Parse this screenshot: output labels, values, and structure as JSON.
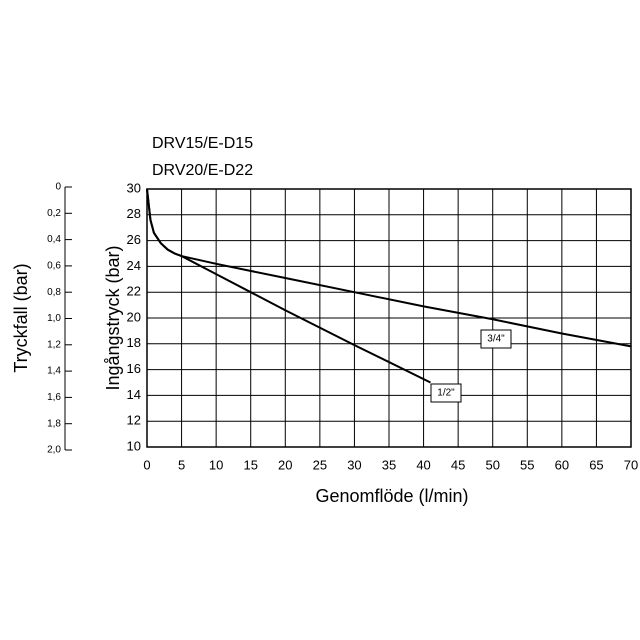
{
  "chart_data": {
    "type": "line",
    "titles": [
      "DRV15/E-D15",
      "DRV20/E-D22"
    ],
    "x_label": "Genomflöde (l/min)",
    "y_label": "Ingångstryck (bar)",
    "y2_label": "Tryckfall (bar)",
    "xlim": [
      0,
      70
    ],
    "xticks": [
      0,
      5,
      10,
      15,
      20,
      25,
      30,
      35,
      40,
      45,
      50,
      55,
      60,
      65,
      70
    ],
    "ylim": [
      10,
      30
    ],
    "yticks": [
      10,
      12,
      14,
      16,
      18,
      20,
      22,
      24,
      26,
      28,
      30
    ],
    "y2lim": [
      2,
      0
    ],
    "y2ticks": [
      {
        "value": 0,
        "label": "0"
      },
      {
        "value": 0.2,
        "label": "0,2"
      },
      {
        "value": 0.4,
        "label": "0,4"
      },
      {
        "value": 0.6,
        "label": "0,6"
      },
      {
        "value": 0.8,
        "label": "0,8"
      },
      {
        "value": 1,
        "label": "1,0"
      },
      {
        "value": 1.2,
        "label": "1,2"
      },
      {
        "value": 1.4,
        "label": "1,4"
      },
      {
        "value": 1.6,
        "label": "1,6"
      },
      {
        "value": 1.8,
        "label": "1,8"
      },
      {
        "value": 2,
        "label": "2,0"
      }
    ],
    "grid": true,
    "series": [
      {
        "name": "1/2\"",
        "color": "#000000",
        "x": [
          0,
          0.5,
          1,
          2,
          3,
          4,
          5,
          10,
          20,
          30,
          41
        ],
        "values": [
          30,
          27.6,
          26.6,
          25.8,
          25.3,
          25.0,
          24.8,
          23.4,
          20.6,
          17.9,
          15
        ]
      },
      {
        "name": "3/4\"",
        "color": "#000000",
        "x": [
          0,
          0.5,
          1,
          2,
          3,
          4,
          5,
          10,
          20,
          30,
          40,
          50,
          60,
          70
        ],
        "values": [
          30,
          27.6,
          26.6,
          25.8,
          25.3,
          25.0,
          24.8,
          24.2,
          23.1,
          22.0,
          20.9,
          19.9,
          18.8,
          17.8
        ]
      }
    ]
  }
}
